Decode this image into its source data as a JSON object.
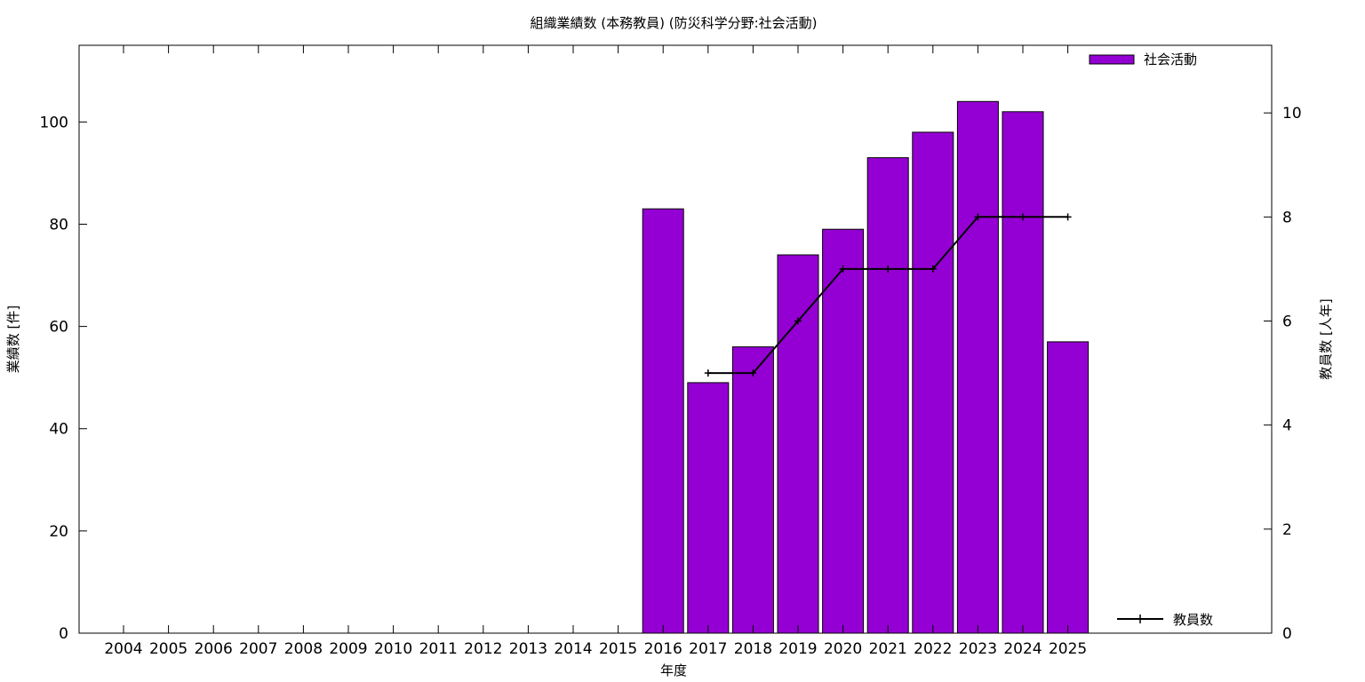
{
  "chart_data": {
    "type": "bar",
    "title": "組織業績数 (本務教員) (防災科学分野:社会活動)",
    "xlabel": "年度",
    "ylabel": "業績数 [件]",
    "y2label": "教員数 [人年]",
    "categories": [
      "2004",
      "2005",
      "2006",
      "2007",
      "2008",
      "2009",
      "2010",
      "2011",
      "2012",
      "2013",
      "2014",
      "2015",
      "2016",
      "2017",
      "2018",
      "2019",
      "2020",
      "2021",
      "2022",
      "2023",
      "2024",
      "2025"
    ],
    "ylim": [
      0,
      115
    ],
    "y2lim": [
      0,
      11.3
    ],
    "yticks": [
      0,
      20,
      40,
      60,
      80,
      100
    ],
    "y2ticks": [
      0,
      2,
      4,
      6,
      8,
      10
    ],
    "grid": false,
    "legend_bar_position": "top-right",
    "legend_line_position": "bottom-right",
    "series": [
      {
        "name": "社会活動",
        "kind": "bar",
        "axis": "left",
        "color": "#9400d3",
        "values": [
          null,
          null,
          null,
          null,
          null,
          null,
          null,
          null,
          null,
          null,
          null,
          null,
          83,
          49,
          56,
          74,
          79,
          93,
          98,
          104,
          102,
          57
        ]
      },
      {
        "name": "教員数",
        "kind": "line",
        "axis": "right",
        "color": "#000000",
        "values": [
          null,
          null,
          null,
          null,
          null,
          null,
          null,
          null,
          null,
          null,
          null,
          null,
          null,
          5,
          5,
          6,
          7,
          7,
          7,
          8,
          8,
          8
        ]
      }
    ]
  }
}
